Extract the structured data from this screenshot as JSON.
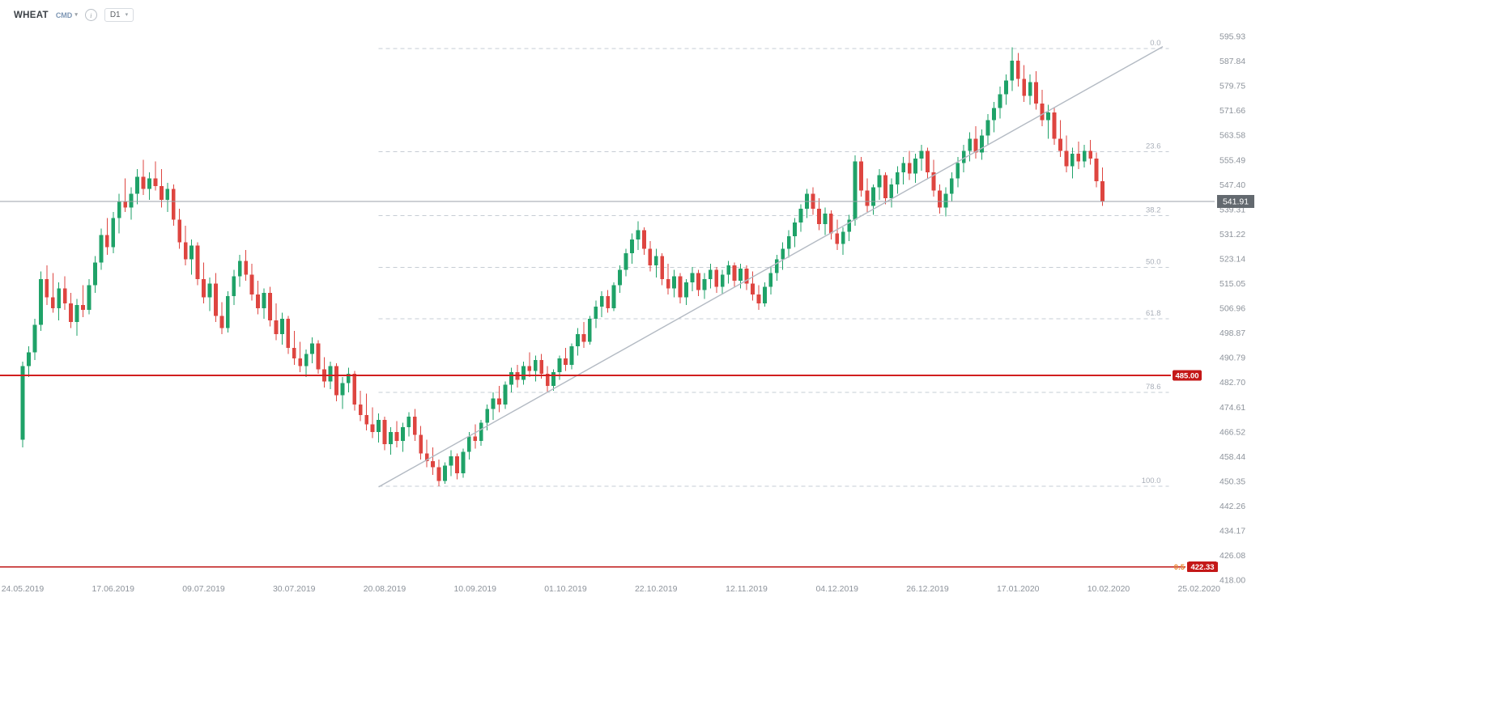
{
  "header": {
    "symbol": "WHEAT",
    "market": "CMD",
    "timeframe": "D1"
  },
  "icons": {
    "chevron_down": "▾",
    "info": "i"
  },
  "colors": {
    "bull": "#1fa268",
    "bear": "#de4540",
    "fib_line": "#c6ccd4",
    "fib_label": "#a9afb9",
    "trend_line": "#b3bac3",
    "axis_text": "#8d939b",
    "current_line": "#9ba1a8",
    "current_badge": "#63696f",
    "prefix_text": "#e8832a"
  },
  "chart_data": {
    "type": "candlestick",
    "title": "WHEAT CMD D1",
    "y_axis": {
      "max": 595.93,
      "min": 418.0,
      "ticks": [
        "595.93",
        "587.84",
        "579.75",
        "571.66",
        "563.58",
        "555.49",
        "547.40",
        "539.31",
        "531.22",
        "523.14",
        "515.05",
        "506.96",
        "498.87",
        "490.79",
        "482.70",
        "474.61",
        "466.52",
        "458.44",
        "450.35",
        "442.26",
        "434.17",
        "426.08",
        "418.00"
      ]
    },
    "x_axis": {
      "dates": [
        "24.05.2019",
        "17.06.2019",
        "09.07.2019",
        "30.07.2019",
        "20.08.2019",
        "10.09.2019",
        "01.10.2019",
        "22.10.2019",
        "12.11.2019",
        "04.12.2019",
        "26.12.2019",
        "17.01.2020",
        "10.02.2020",
        "25.02.2020"
      ]
    },
    "current_price": {
      "value": 541.91,
      "label": "541.91"
    },
    "fibonacci": {
      "start_index": 59,
      "end_index": 190,
      "levels": [
        {
          "label": "0.0",
          "price": 592.0
        },
        {
          "label": "23.6",
          "price": 558.2
        },
        {
          "label": "38.2",
          "price": 537.3
        },
        {
          "label": "50.0",
          "price": 520.4
        },
        {
          "label": "61.8",
          "price": 503.5
        },
        {
          "label": "78.6",
          "price": 479.4
        },
        {
          "label": "100.0",
          "price": 448.8
        }
      ]
    },
    "trendline": {
      "start_index": 59,
      "start_price": 448.5,
      "end_index": 189,
      "end_price": 592.6
    },
    "horizontal_lines": [
      {
        "price": 485.0,
        "label": "485.00",
        "color": "#d11f1f",
        "badge_color": "#c41818",
        "stroke_width": 2
      },
      {
        "price": 422.33,
        "label": "422.33",
        "prefix": "0.5",
        "color": "#bf1717",
        "badge_color": "#c41818",
        "stroke_width": 1.5
      }
    ],
    "candles": [
      [
        464,
        489.5,
        461.5,
        488
      ],
      [
        488,
        494.5,
        484.5,
        492.5
      ],
      [
        492.5,
        503.5,
        490,
        501.5
      ],
      [
        501.5,
        519,
        499.5,
        516.5
      ],
      [
        516.5,
        521,
        508,
        510.5
      ],
      [
        510.5,
        518.5,
        505.5,
        507
      ],
      [
        507,
        515.5,
        503,
        513.5
      ],
      [
        513.5,
        517.5,
        506.5,
        508.5
      ],
      [
        508.5,
        512,
        500.5,
        502.5
      ],
      [
        502.5,
        510,
        498,
        508
      ],
      [
        508,
        514.5,
        504,
        506.5
      ],
      [
        506.5,
        516.5,
        505,
        514.5
      ],
      [
        514.5,
        524,
        512,
        522
      ],
      [
        522,
        533,
        519.5,
        531
      ],
      [
        531,
        536.5,
        524.5,
        527
      ],
      [
        527,
        538.5,
        525,
        536.5
      ],
      [
        536.5,
        544.5,
        531.5,
        542
      ],
      [
        542,
        549.5,
        538.5,
        540
      ],
      [
        540,
        546.5,
        536,
        544.5
      ],
      [
        544.5,
        552.5,
        541,
        550
      ],
      [
        550,
        555.5,
        544,
        546
      ],
      [
        546,
        551.5,
        542.5,
        549.5
      ],
      [
        549.5,
        555,
        545.5,
        547
      ],
      [
        547,
        552.5,
        540,
        542.5
      ],
      [
        542.5,
        548,
        538.5,
        546
      ],
      [
        546,
        547.5,
        534,
        536
      ],
      [
        536,
        539.5,
        526.5,
        528.5
      ],
      [
        528.5,
        534,
        521,
        523
      ],
      [
        523,
        529.5,
        518,
        527.5
      ],
      [
        527.5,
        528.5,
        514.5,
        516.5
      ],
      [
        516.5,
        522,
        508.5,
        510.5
      ],
      [
        510.5,
        517,
        506,
        515
      ],
      [
        515,
        518.5,
        502.5,
        504.5
      ],
      [
        504.5,
        509,
        498.5,
        500.5
      ],
      [
        500.5,
        512.5,
        499,
        511
      ],
      [
        511,
        519.5,
        508,
        517.5
      ],
      [
        517.5,
        524.5,
        514,
        522.5
      ],
      [
        522.5,
        526,
        516,
        518
      ],
      [
        518,
        521.5,
        509.5,
        511.5
      ],
      [
        511.5,
        516,
        505,
        507
      ],
      [
        507,
        513.5,
        503.5,
        512
      ],
      [
        512,
        514,
        501,
        503
      ],
      [
        503,
        508.5,
        496.5,
        498.5
      ],
      [
        498.5,
        505.5,
        495,
        503.5
      ],
      [
        503.5,
        504.5,
        492,
        494
      ],
      [
        494,
        499.5,
        488.5,
        490.5
      ],
      [
        490.5,
        496,
        486,
        488
      ],
      [
        488,
        493.5,
        484.5,
        492
      ],
      [
        492,
        497.5,
        489,
        495.5
      ],
      [
        495.5,
        496.5,
        485.5,
        487
      ],
      [
        487,
        491,
        481,
        483
      ],
      [
        483,
        489.5,
        480.5,
        488
      ],
      [
        488,
        489,
        476.5,
        478.5
      ],
      [
        478.5,
        484.5,
        474,
        482.5
      ],
      [
        482.5,
        487.5,
        479.5,
        485.5
      ],
      [
        485.5,
        486.5,
        473.5,
        475.5
      ],
      [
        475.5,
        480,
        470,
        472
      ],
      [
        472,
        479,
        467,
        469
      ],
      [
        469,
        474.5,
        464.5,
        466.5
      ],
      [
        466.5,
        472.5,
        463,
        470.5
      ],
      [
        470.5,
        471.5,
        460.5,
        462.5
      ],
      [
        462.5,
        468,
        459,
        466.5
      ],
      [
        466.5,
        470,
        461.5,
        463.5
      ],
      [
        463.5,
        469.5,
        460,
        468
      ],
      [
        468,
        473,
        465,
        471.5
      ],
      [
        471.5,
        474,
        463.5,
        465.5
      ],
      [
        465.5,
        468.5,
        457.5,
        459.5
      ],
      [
        459.5,
        464,
        455,
        457
      ],
      [
        457,
        461.5,
        452.5,
        455
      ],
      [
        455,
        457.5,
        448.8,
        450.5
      ],
      [
        450.5,
        456.5,
        449.5,
        455.5
      ],
      [
        455.5,
        460.5,
        452,
        458.5
      ],
      [
        458.5,
        459.5,
        451,
        453
      ],
      [
        453,
        461,
        451.5,
        460
      ],
      [
        460,
        466.5,
        457.5,
        465
      ],
      [
        465,
        469,
        461,
        463.5
      ],
      [
        463.5,
        470.5,
        462,
        469.5
      ],
      [
        469.5,
        475.5,
        467,
        474
      ],
      [
        474,
        479.5,
        470.5,
        477.5
      ],
      [
        477.5,
        481.5,
        473,
        475.5
      ],
      [
        475.5,
        483,
        474,
        482
      ],
      [
        482,
        487.5,
        479.5,
        486
      ],
      [
        486,
        488.5,
        481,
        483.5
      ],
      [
        483.5,
        489.5,
        482,
        488
      ],
      [
        488,
        492.5,
        484.5,
        486.5
      ],
      [
        486.5,
        491.5,
        483,
        490
      ],
      [
        490,
        492,
        484,
        485.5
      ],
      [
        485.5,
        488,
        479.5,
        481.5
      ],
      [
        481.5,
        487,
        480,
        486
      ],
      [
        486,
        491.5,
        483.5,
        490.5
      ],
      [
        490.5,
        494,
        486.5,
        488.5
      ],
      [
        488.5,
        495.5,
        487,
        494.5
      ],
      [
        494.5,
        500.5,
        491.5,
        498.5
      ],
      [
        498.5,
        502.5,
        494,
        496
      ],
      [
        496,
        504.5,
        495,
        503.5
      ],
      [
        503.5,
        509.5,
        500.5,
        507.5
      ],
      [
        507.5,
        512.5,
        504,
        511
      ],
      [
        511,
        513,
        505.5,
        507
      ],
      [
        507,
        515.5,
        506,
        514.5
      ],
      [
        514.5,
        521,
        512,
        519.5
      ],
      [
        519.5,
        526.5,
        517.5,
        525
      ],
      [
        525,
        531.5,
        521.5,
        529.5
      ],
      [
        529.5,
        535.5,
        526,
        532.5
      ],
      [
        532.5,
        533.5,
        524.5,
        526.5
      ],
      [
        526.5,
        529,
        519,
        521
      ],
      [
        521,
        526.5,
        517,
        524
      ],
      [
        524,
        525,
        514.5,
        516.5
      ],
      [
        516.5,
        521.5,
        511.5,
        513.5
      ],
      [
        513.5,
        519.5,
        510.5,
        517.5
      ],
      [
        517.5,
        518.5,
        508.5,
        510.5
      ],
      [
        510.5,
        516.5,
        508,
        515.5
      ],
      [
        515.5,
        520.5,
        512.5,
        518.5
      ],
      [
        518.5,
        519.5,
        511,
        513
      ],
      [
        513,
        518.5,
        510,
        516.5
      ],
      [
        516.5,
        521.5,
        513.5,
        519.5
      ],
      [
        519.5,
        520.5,
        512,
        514
      ],
      [
        514,
        519.5,
        511.5,
        518
      ],
      [
        518,
        522.5,
        515,
        521
      ],
      [
        521,
        522,
        514,
        516
      ],
      [
        516,
        521.5,
        513.5,
        520
      ],
      [
        520,
        521,
        513,
        515
      ],
      [
        515,
        519,
        509.5,
        511.5
      ],
      [
        511.5,
        514.5,
        506.5,
        508.5
      ],
      [
        508.5,
        515.5,
        507.5,
        514
      ],
      [
        514,
        520.5,
        511.5,
        518.5
      ],
      [
        518.5,
        524.5,
        516,
        523
      ],
      [
        523,
        528.5,
        519.5,
        526.5
      ],
      [
        526.5,
        532.5,
        523.5,
        530.5
      ],
      [
        530.5,
        536.5,
        527,
        535
      ],
      [
        535,
        541,
        532,
        539.5
      ],
      [
        539.5,
        546,
        536.5,
        544.5
      ],
      [
        544.5,
        546.5,
        537.5,
        539.5
      ],
      [
        539.5,
        543,
        532.5,
        534.5
      ],
      [
        534.5,
        540,
        531,
        538
      ],
      [
        538,
        539,
        529.5,
        531.5
      ],
      [
        531.5,
        536,
        526,
        528
      ],
      [
        528,
        533.5,
        524.5,
        532
      ],
      [
        532,
        537.5,
        529,
        536
      ],
      [
        536,
        557,
        534,
        555
      ],
      [
        555,
        556.5,
        543.5,
        545.5
      ],
      [
        545.5,
        549.5,
        538.5,
        540.5
      ],
      [
        540.5,
        547.5,
        537.5,
        546.5
      ],
      [
        546.5,
        552.5,
        542.5,
        550.5
      ],
      [
        550.5,
        551.5,
        541,
        543
      ],
      [
        543,
        549.5,
        540,
        547.5
      ],
      [
        547.5,
        553.5,
        544.5,
        551.5
      ],
      [
        551.5,
        556.5,
        547.5,
        554.5
      ],
      [
        554.5,
        558.5,
        549,
        551
      ],
      [
        551,
        557.5,
        548,
        556
      ],
      [
        556,
        560.5,
        552,
        558.5
      ],
      [
        558.5,
        559.5,
        549.5,
        551.5
      ],
      [
        551.5,
        555.5,
        543.5,
        545.5
      ],
      [
        545.5,
        547.5,
        538,
        540
      ],
      [
        540,
        546.5,
        537,
        544.5
      ],
      [
        544.5,
        551.5,
        542,
        549.5
      ],
      [
        549.5,
        556.5,
        546.5,
        554.5
      ],
      [
        554.5,
        560.5,
        551.5,
        558.5
      ],
      [
        558.5,
        564.5,
        555,
        562.5
      ],
      [
        562.5,
        566.5,
        556,
        558
      ],
      [
        558,
        565.5,
        555.5,
        563.5
      ],
      [
        563.5,
        570.5,
        560.5,
        568.5
      ],
      [
        568.5,
        574.5,
        564.5,
        572.5
      ],
      [
        572.5,
        579.5,
        569,
        577
      ],
      [
        577,
        583.5,
        573.5,
        581.5
      ],
      [
        581.5,
        592.3,
        578,
        588
      ],
      [
        588,
        590.5,
        579.5,
        582
      ],
      [
        582,
        586.5,
        574.5,
        576.5
      ],
      [
        576.5,
        583.5,
        573.5,
        581
      ],
      [
        581,
        584.5,
        572,
        574
      ],
      [
        574,
        578.5,
        566.5,
        568.5
      ],
      [
        568.5,
        573.5,
        562.5,
        571
      ],
      [
        571,
        572.5,
        560.5,
        562.5
      ],
      [
        562.5,
        568.5,
        556.5,
        558.5
      ],
      [
        558.5,
        563.5,
        551.5,
        553.5
      ],
      [
        553.5,
        559.5,
        549.5,
        557.5
      ],
      [
        557.5,
        561.5,
        552.5,
        555
      ],
      [
        555,
        560.5,
        553,
        558.5
      ],
      [
        558.5,
        562,
        554,
        556
      ],
      [
        556,
        558,
        546.5,
        548.5
      ],
      [
        548.5,
        553,
        540.5,
        541.91
      ]
    ]
  }
}
